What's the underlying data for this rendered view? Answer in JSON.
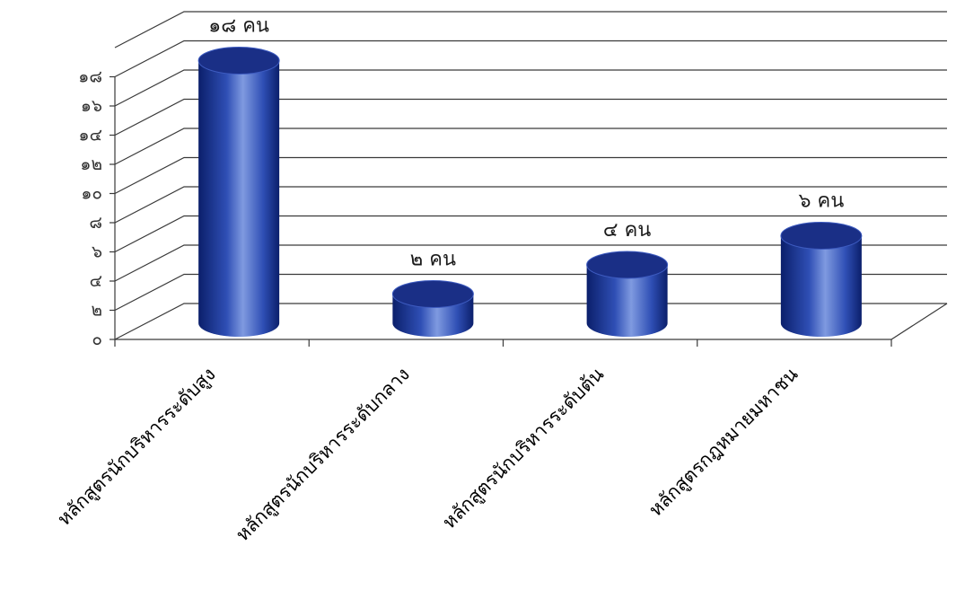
{
  "chart_data": {
    "type": "bar",
    "style": "3d-cylinder",
    "categories": [
      "หลักสูตรนักบริหารระดับสูง",
      "หลักสูตรนักบริหารระดับกลาง",
      "หลักสูตรนักบริหารระดับต้น",
      "หลักสูตรกฎหมายมหาชน"
    ],
    "values": [
      18,
      2,
      4,
      6
    ],
    "data_labels": [
      "๑๘ คน",
      "๒ คน",
      "๔ คน",
      "๖ คน"
    ],
    "y_tick_values": [
      0,
      2,
      4,
      6,
      8,
      10,
      12,
      14,
      16,
      18
    ],
    "y_tick_labels": [
      "๐",
      "๒",
      "๔",
      "๖",
      "๘",
      "๑๐",
      "๑๒",
      "๑๔",
      "๑๖",
      "๑๘"
    ],
    "ylim": [
      0,
      20
    ],
    "grid": true,
    "legend": "none",
    "colors": {
      "bar_dark": "#0b1f6b",
      "bar_mid": "#2f4fb5",
      "bar_light": "#7f9ae0",
      "bar_top": "#1a2f86",
      "grid": "#3a3a3a"
    }
  }
}
